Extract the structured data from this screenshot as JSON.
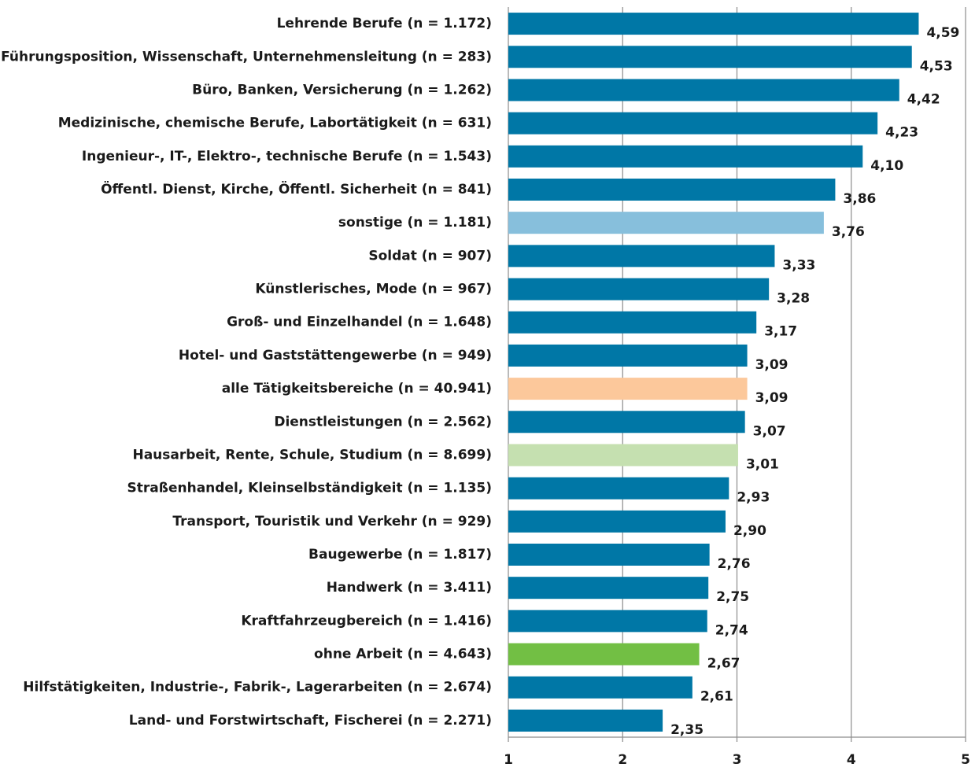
{
  "chart_data": {
    "type": "hbar",
    "categories": [
      "Lehrende Berufe (n = 1.172)",
      "Führungsposition, Wissenschaft, Unternehmensleitung (n = 283)",
      "Büro, Banken, Versicherung (n = 1.262)",
      "Medizinische, chemische Berufe, Labortätigkeit (n = 631)",
      "Ingenieur-, IT-, Elektro-, technische Berufe (n = 1.543)",
      "Öffentl. Dienst, Kirche, Öffentl. Sicherheit (n = 841)",
      "sonstige (n = 1.181)",
      "Soldat (n = 907)",
      "Künstlerisches, Mode (n = 967)",
      "Groß- und Einzelhandel (n = 1.648)",
      "Hotel- und Gaststättengewerbe (n = 949)",
      "alle Tätigkeitsbereiche (n = 40.941)",
      "Dienstleistungen (n = 2.562)",
      "Hausarbeit, Rente, Schule, Studium (n = 8.699)",
      "Straßenhandel, Kleinselbständigkeit (n = 1.135)",
      "Transport, Touristik und Verkehr (n = 929)",
      "Baugewerbe (n = 1.817)",
      "Handwerk (n = 3.411)",
      "Kraftfahrzeugbereich (n = 1.416)",
      "ohne Arbeit (n = 4.643)",
      "Hilfstätigkeiten, Industrie-, Fabrik-, Lagerarbeiten (n = 2.674)",
      "Land- und Forstwirtschaft, Fischerei (n = 2.271)"
    ],
    "values": [
      4.59,
      4.53,
      4.42,
      4.23,
      4.1,
      3.86,
      3.76,
      3.33,
      3.28,
      3.17,
      3.09,
      3.09,
      3.07,
      3.01,
      2.93,
      2.9,
      2.76,
      2.75,
      2.74,
      2.67,
      2.61,
      2.35
    ],
    "value_labels": [
      "4,59",
      "4,53",
      "4,42",
      "4,23",
      "4,10",
      "3,86",
      "3,76",
      "3,33",
      "3,28",
      "3,17",
      "3,09",
      "3,09",
      "3,07",
      "3,01",
      "2,93",
      "2,90",
      "2,76",
      "2,75",
      "2,74",
      "2,67",
      "2,61",
      "2,35"
    ],
    "colors": [
      "#0077a6",
      "#0077a6",
      "#0077a6",
      "#0077a6",
      "#0077a6",
      "#0077a6",
      "#87bfdc",
      "#0077a6",
      "#0077a6",
      "#0077a6",
      "#0077a6",
      "#fcc89b",
      "#0077a6",
      "#c5e0b0",
      "#0077a6",
      "#0077a6",
      "#0077a6",
      "#0077a6",
      "#0077a6",
      "#72bf44",
      "#0077a6",
      "#0077a6"
    ],
    "xlim": [
      1,
      5
    ],
    "xticks": [
      1,
      2,
      3,
      4,
      5
    ],
    "grid": true
  }
}
